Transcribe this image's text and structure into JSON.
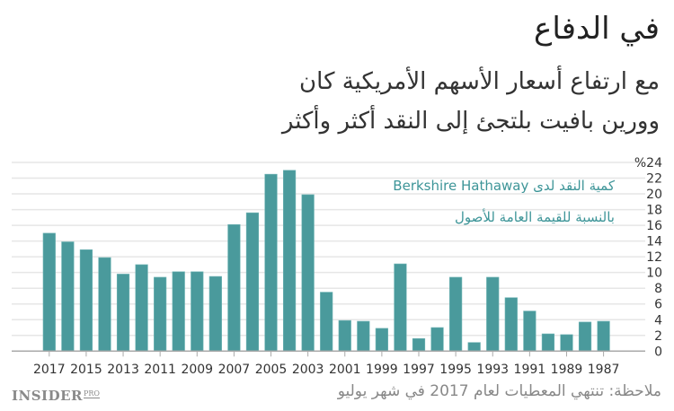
{
  "header": {
    "title": "في الدفاع",
    "subtitle_line1": "مع ارتفاع أسعار الأسهم الأمريكية كان",
    "subtitle_line2": "وورين بافيت بلتجئ إلى النقد أكثر وأكثر"
  },
  "legend": {
    "line1": "كمية النقد لدى Berkshire Hathaway",
    "line2": "بالنسبة للقيمة العامة للأصول"
  },
  "footer": {
    "note": "ملاحظة: تنتهي المعطيات لعام 2017 في شهر يوليو",
    "logo_main": "INSIDER",
    "logo_sub": "PRO"
  },
  "colors": {
    "bar": "#4a9a9c",
    "legend_text": "#3d9598",
    "grid": "#e6e6e6",
    "axis": "#aaaaaa",
    "tick_label": "#333333"
  },
  "chart_data": {
    "type": "bar",
    "title": "في الدفاع",
    "subtitle": "مع ارتفاع أسعار الأسهم الأمريكية كان وورين بافيت بلتجئ إلى النقد أكثر وأكثر",
    "xlabel": "",
    "ylabel": "",
    "y_unit_label": "%24",
    "ylim": [
      0,
      24
    ],
    "yticks": [
      0,
      2,
      4,
      6,
      8,
      10,
      12,
      14,
      16,
      18,
      20,
      22,
      24
    ],
    "ytick_labels": [
      "0",
      "2",
      "4",
      "6",
      "8",
      "10",
      "12",
      "14",
      "16",
      "18",
      "20",
      "22",
      "%24"
    ],
    "y_axis_position": "right",
    "grid": true,
    "categories": [
      "2017",
      "2016",
      "2015",
      "2014",
      "2013",
      "2012",
      "2011",
      "2010",
      "2009",
      "2008",
      "2007",
      "2006",
      "2005",
      "2004",
      "2003",
      "2002",
      "2001",
      "2000",
      "1999",
      "1998",
      "1997",
      "1996",
      "1995",
      "1994",
      "1993",
      "1992",
      "1991",
      "1990",
      "1989",
      "1988",
      "1987"
    ],
    "xtick_labels": [
      "2017",
      "2015",
      "2013",
      "2011",
      "2009",
      "2007",
      "2005",
      "2003",
      "2001",
      "1999",
      "1997",
      "1995",
      "1993",
      "1991",
      "1989",
      "1987"
    ],
    "series": [
      {
        "name": "كمية النقد لدى Berkshire Hathaway بالنسبة للقيمة العامة للأصول",
        "values": [
          15.0,
          13.9,
          12.9,
          11.9,
          9.8,
          11.0,
          9.4,
          10.1,
          10.1,
          9.5,
          16.1,
          17.6,
          22.5,
          23.0,
          19.9,
          7.5,
          3.9,
          3.8,
          2.9,
          11.1,
          1.6,
          3.0,
          9.4,
          1.1,
          9.4,
          6.8,
          5.1,
          2.2,
          2.1,
          3.7,
          3.8
        ]
      }
    ],
    "legend_position": "inside-top-right",
    "note": "ملاحظة: تنتهي المعطيات لعام 2017 في شهر يوليو"
  }
}
